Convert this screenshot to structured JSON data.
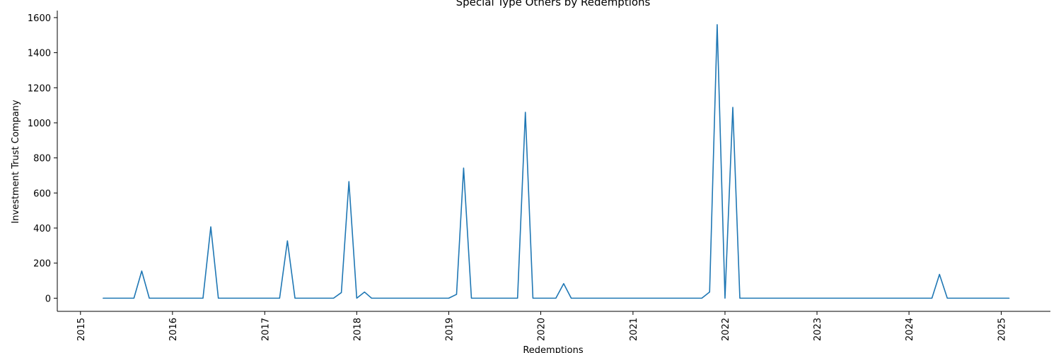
{
  "chart_data": {
    "type": "line",
    "title": "Special Type Others by Redemptions",
    "xlabel": "Redemptions",
    "ylabel": "Investment Trust Company",
    "x_ticks": [
      "2015",
      "2016",
      "2017",
      "2018",
      "2019",
      "2020",
      "2021",
      "2022",
      "2023",
      "2024",
      "2025"
    ],
    "y_ticks": [
      0,
      200,
      400,
      600,
      800,
      1000,
      1200,
      1400,
      1600
    ],
    "xlim": [
      "2014-10-01",
      "2025-07-15"
    ],
    "ylim": [
      -75,
      1640
    ],
    "grid": false,
    "line_color": "#1f77b4",
    "series": [
      {
        "values": [
          {
            "x": "2015-04-01",
            "y": 0
          },
          {
            "x": "2015-08-01",
            "y": 0
          },
          {
            "x": "2015-09-01",
            "y": 155
          },
          {
            "x": "2015-10-01",
            "y": 0
          },
          {
            "x": "2016-05-01",
            "y": 0
          },
          {
            "x": "2016-06-01",
            "y": 407
          },
          {
            "x": "2016-07-01",
            "y": 0
          },
          {
            "x": "2017-03-01",
            "y": 0
          },
          {
            "x": "2017-04-01",
            "y": 327
          },
          {
            "x": "2017-05-01",
            "y": 0
          },
          {
            "x": "2017-10-01",
            "y": 0
          },
          {
            "x": "2017-11-01",
            "y": 32
          },
          {
            "x": "2017-12-01",
            "y": 665
          },
          {
            "x": "2018-01-01",
            "y": 0
          },
          {
            "x": "2018-02-01",
            "y": 35
          },
          {
            "x": "2018-03-01",
            "y": 0
          },
          {
            "x": "2019-01-01",
            "y": 0
          },
          {
            "x": "2019-02-01",
            "y": 22
          },
          {
            "x": "2019-03-01",
            "y": 742
          },
          {
            "x": "2019-04-01",
            "y": 0
          },
          {
            "x": "2019-10-01",
            "y": 0
          },
          {
            "x": "2019-11-01",
            "y": 1060
          },
          {
            "x": "2019-12-01",
            "y": 0
          },
          {
            "x": "2020-03-01",
            "y": 0
          },
          {
            "x": "2020-04-01",
            "y": 83
          },
          {
            "x": "2020-05-01",
            "y": 0
          },
          {
            "x": "2021-10-01",
            "y": 0
          },
          {
            "x": "2021-11-01",
            "y": 35
          },
          {
            "x": "2021-12-01",
            "y": 1560
          },
          {
            "x": "2022-01-01",
            "y": 0
          },
          {
            "x": "2022-02-01",
            "y": 1088
          },
          {
            "x": "2022-03-01",
            "y": 0
          },
          {
            "x": "2024-04-01",
            "y": 0
          },
          {
            "x": "2024-05-01",
            "y": 136
          },
          {
            "x": "2024-06-01",
            "y": 0
          },
          {
            "x": "2025-02-01",
            "y": 0
          }
        ]
      }
    ]
  }
}
